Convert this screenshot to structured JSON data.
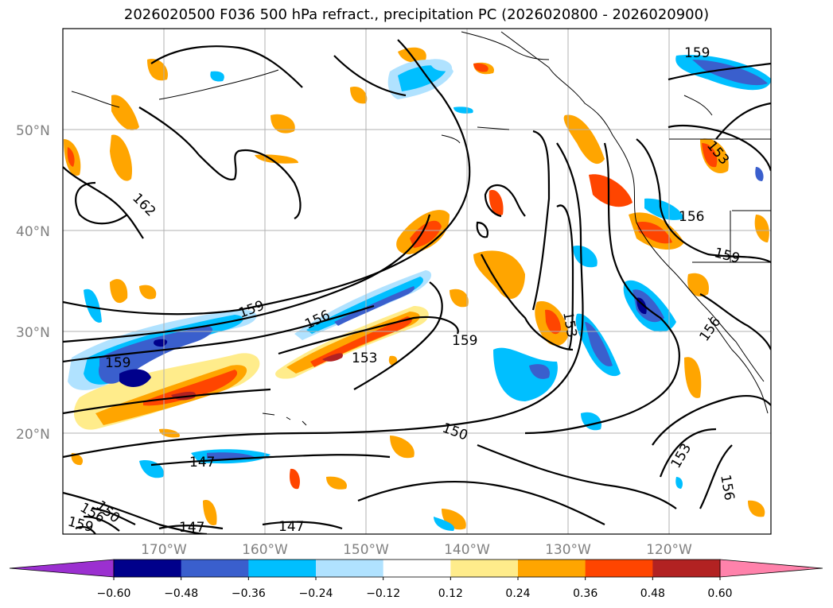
{
  "title": "2026020500 F036 500 hPa refract., precipitation PC (2026020800 - 2026020900)",
  "map": {
    "lat_labels": [
      "50°N",
      "40°N",
      "30°N",
      "20°N"
    ],
    "lon_labels": [
      "170°W",
      "160°W",
      "150°W",
      "140°W",
      "130°W",
      "120°W"
    ],
    "contour_labels": [
      "159",
      "162",
      "159",
      "156",
      "153",
      "159",
      "153",
      "156",
      "159",
      "153",
      "156",
      "159",
      "150",
      "147",
      "147",
      "147",
      "153",
      "156",
      "150",
      "156",
      "159"
    ],
    "contour_color": "#000000",
    "gridline_color": "#b0b0b0"
  },
  "colorbar": {
    "ticks": [
      "−0.60",
      "−0.48",
      "−0.36",
      "−0.24",
      "−0.12",
      "0.12",
      "0.24",
      "0.36",
      "0.48",
      "0.60"
    ],
    "colors": [
      "#9b30d0",
      "#00008b",
      "#3a5fcd",
      "#00bfff",
      "#b0e2ff",
      "#ffffff",
      "#ffec8b",
      "#ffa500",
      "#ff4500",
      "#b22222",
      "#ff82ab"
    ],
    "extend": "both"
  }
}
